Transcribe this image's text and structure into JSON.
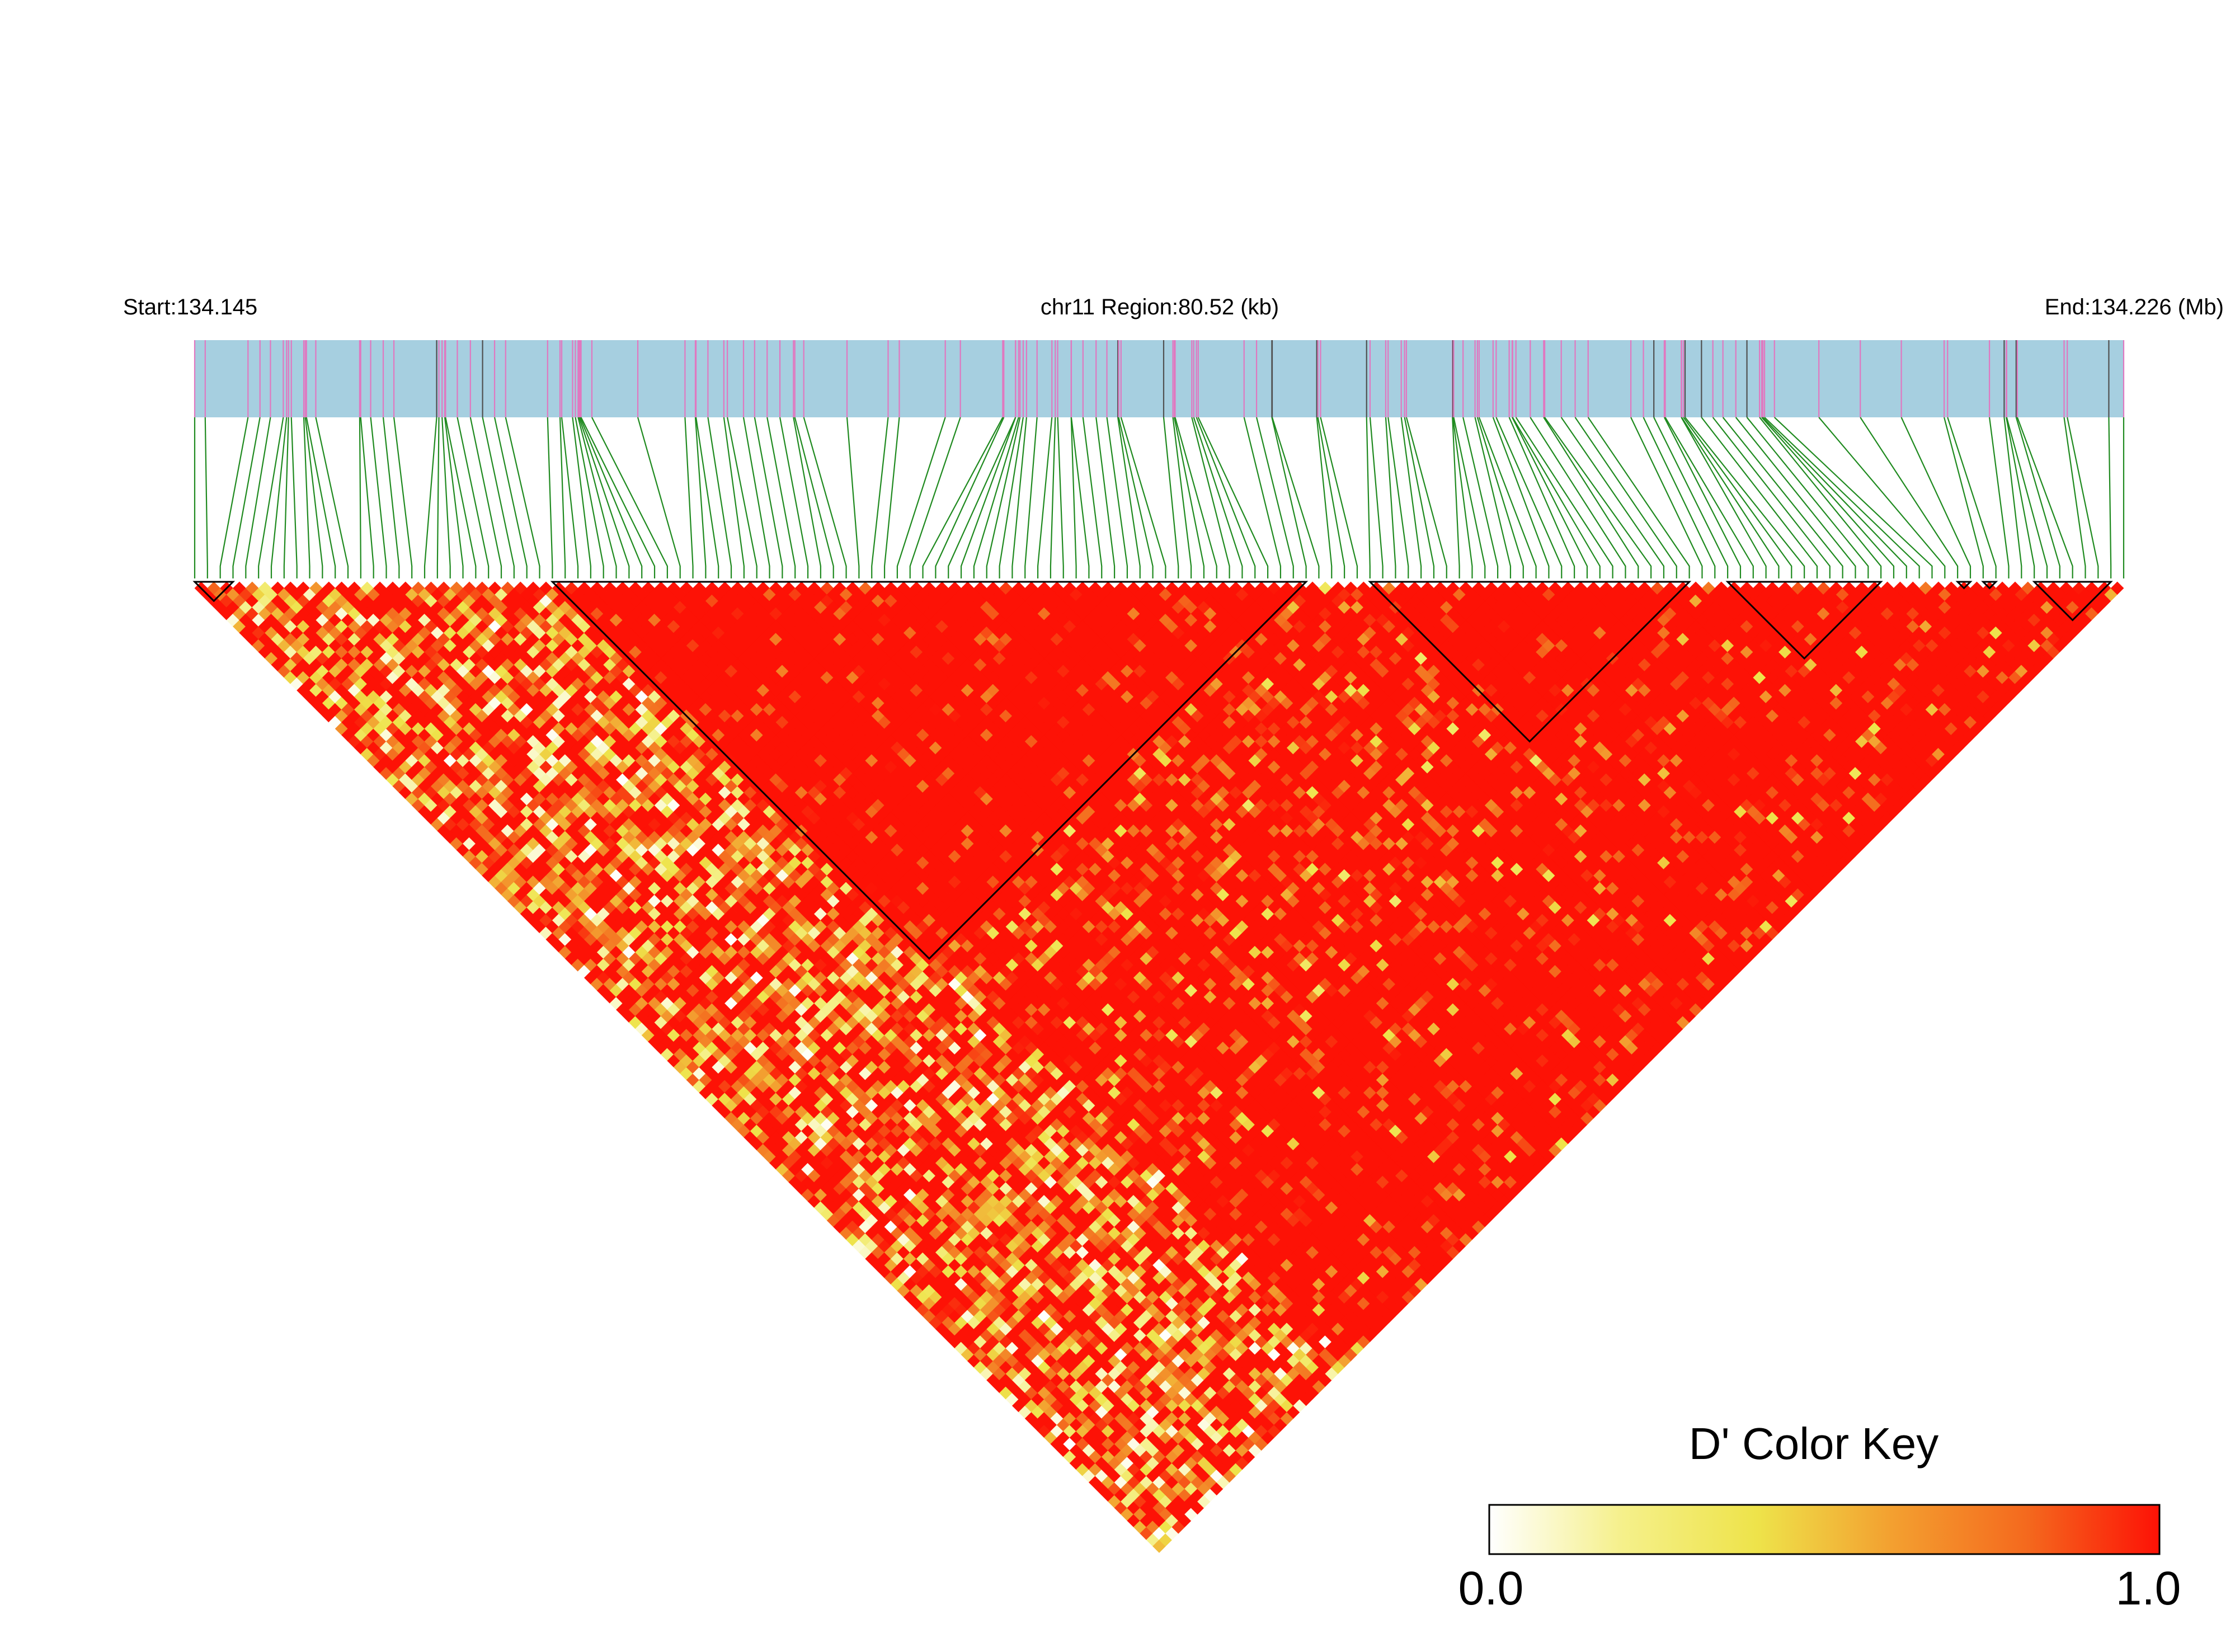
{
  "chart_data": {
    "type": "heatmap",
    "title": "",
    "chromosome": "chr11",
    "header": {
      "start_label": "Start:134.145",
      "region_label": "chr11 Region:80.52 (kb)",
      "end_label": "End:134.226 (Mb)"
    },
    "region": {
      "start_mb": 134.145,
      "end_mb": 134.226,
      "length_kb": 80.52
    },
    "snp_count": 152,
    "metric": "D'",
    "haplotype_blocks": [
      {
        "from_snp": 1,
        "to_snp": 4
      },
      {
        "from_snp": 29,
        "to_snp": 88
      },
      {
        "from_snp": 93,
        "to_snp": 118
      },
      {
        "from_snp": 121,
        "to_snp": 133
      },
      {
        "from_snp": 139,
        "to_snp": 140
      },
      {
        "from_snp": 141,
        "to_snp": 142
      },
      {
        "from_snp": 145,
        "to_snp": 151
      }
    ],
    "color_key": {
      "title": "D' Color Key",
      "min_label": "0.0",
      "max_label": "1.0",
      "range": [
        0.0,
        1.0
      ],
      "colors": [
        "#ffffff",
        "#f5f08a",
        "#eee34a",
        "#f3a030",
        "#f46a1e",
        "#fd1206"
      ]
    },
    "track_colors": {
      "band": "#a6cfe0",
      "snp_tick": "#e078c0",
      "typed_tick": "#505050",
      "connector": "#1f8a1f",
      "block_outline": "#000000"
    }
  }
}
